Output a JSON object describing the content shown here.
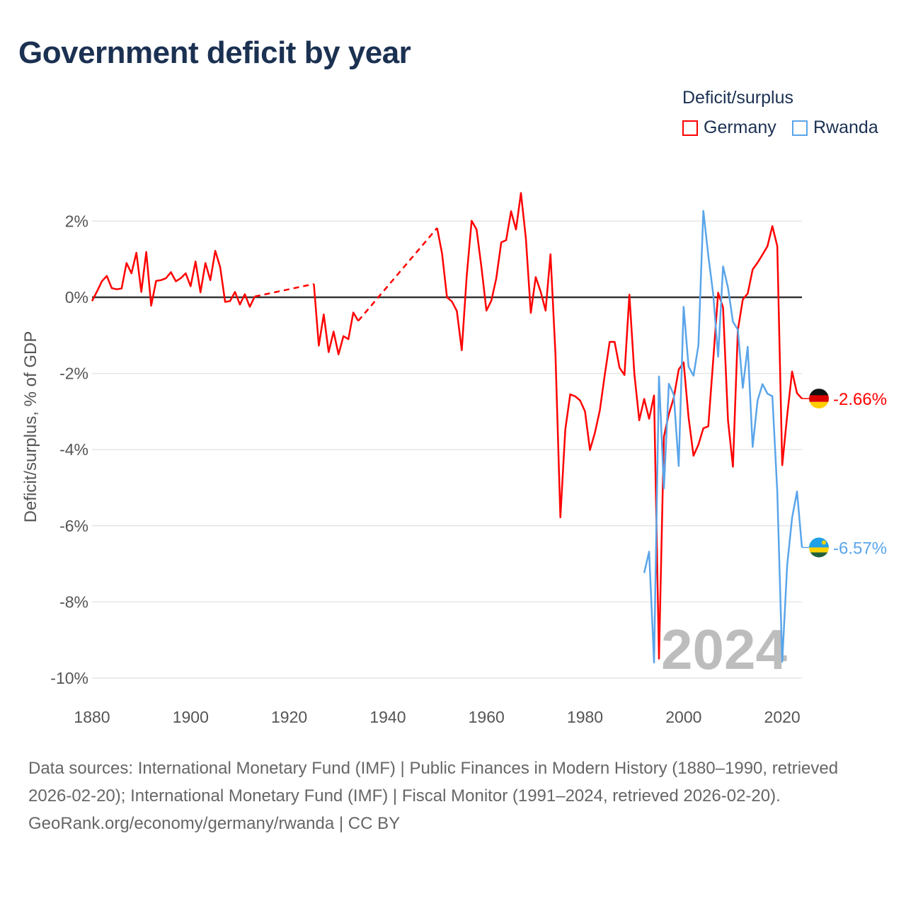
{
  "title": "Government deficit by year",
  "legend": {
    "title": "Deficit/surplus",
    "items": [
      {
        "label": "Germany",
        "color": "#ff0000"
      },
      {
        "label": "Rwanda",
        "color": "#5aa5ea"
      }
    ]
  },
  "year_watermark": "2024",
  "footer": {
    "sources": "Data sources: International Monetary Fund (IMF) | Public Finances in Modern History (1880–1990, retrieved 2026-02-20); International Monetary Fund (IMF) | Fiscal Monitor (1991–2024, retrieved 2026-02-20).",
    "credit": "GeoRank.org/economy/germany/rwanda | CC BY"
  },
  "chart_data": {
    "type": "line",
    "title": "Government deficit by year",
    "xlabel": "",
    "ylabel": "Deficit/surplus, % of GDP",
    "xlim": [
      1880,
      2024
    ],
    "ylim": [
      -10,
      2.8
    ],
    "x_ticks": [
      1880,
      1900,
      1920,
      1940,
      1960,
      1980,
      2000,
      2020
    ],
    "x_tick_labels": [
      "1880",
      "1900",
      "1920",
      "1940",
      "1960",
      "1980",
      "2000",
      "2020"
    ],
    "y_ticks": [
      2,
      0,
      -2,
      -4,
      -6,
      -8,
      -10
    ],
    "y_tick_labels": [
      "2%",
      "0%",
      "-2%",
      "-4%",
      "-6%",
      "-8%",
      "-10%"
    ],
    "grid": true,
    "legend_position": "top-right",
    "series": [
      {
        "name": "Germany",
        "color": "#ff0000",
        "end_label": "-2.66%",
        "points": [
          [
            1880,
            -0.1
          ],
          [
            1881,
            0.15
          ],
          [
            1882,
            0.42
          ],
          [
            1883,
            0.56
          ],
          [
            1884,
            0.24
          ],
          [
            1885,
            0.21
          ],
          [
            1886,
            0.23
          ],
          [
            1887,
            0.9
          ],
          [
            1888,
            0.63
          ],
          [
            1889,
            1.17
          ],
          [
            1890,
            0.14
          ],
          [
            1891,
            1.19
          ],
          [
            1892,
            -0.22
          ],
          [
            1893,
            0.43
          ],
          [
            1894,
            0.45
          ],
          [
            1895,
            0.5
          ],
          [
            1896,
            0.66
          ],
          [
            1897,
            0.42
          ],
          [
            1898,
            0.5
          ],
          [
            1899,
            0.63
          ],
          [
            1900,
            0.29
          ],
          [
            1901,
            0.94
          ],
          [
            1902,
            0.13
          ],
          [
            1903,
            0.9
          ],
          [
            1904,
            0.45
          ],
          [
            1905,
            1.22
          ],
          [
            1906,
            0.79
          ],
          [
            1907,
            -0.12
          ],
          [
            1908,
            -0.1
          ],
          [
            1909,
            0.14
          ],
          [
            1910,
            -0.19
          ],
          [
            1911,
            0.08
          ],
          [
            1912,
            -0.25
          ],
          [
            1913,
            0.02
          ],
          [
            1925,
            0.35
          ],
          [
            1926,
            -1.27
          ],
          [
            1927,
            -0.45
          ],
          [
            1928,
            -1.44
          ],
          [
            1929,
            -0.9
          ],
          [
            1930,
            -1.5
          ],
          [
            1931,
            -1.02
          ],
          [
            1932,
            -1.1
          ],
          [
            1933,
            -0.4
          ],
          [
            1934,
            -0.62
          ],
          [
            1950,
            1.82
          ],
          [
            1951,
            1.15
          ],
          [
            1952,
            0.0
          ],
          [
            1953,
            -0.11
          ],
          [
            1954,
            -0.36
          ],
          [
            1955,
            -1.39
          ],
          [
            1956,
            0.56
          ],
          [
            1957,
            2.01
          ],
          [
            1958,
            1.78
          ],
          [
            1959,
            0.78
          ],
          [
            1960,
            -0.35
          ],
          [
            1961,
            -0.09
          ],
          [
            1962,
            0.5
          ],
          [
            1963,
            1.44
          ],
          [
            1964,
            1.5
          ],
          [
            1965,
            2.26
          ],
          [
            1966,
            1.78
          ],
          [
            1967,
            2.74
          ],
          [
            1968,
            1.55
          ],
          [
            1969,
            -0.41
          ],
          [
            1970,
            0.53
          ],
          [
            1971,
            0.15
          ],
          [
            1972,
            -0.35
          ],
          [
            1973,
            1.13
          ],
          [
            1974,
            -1.49
          ],
          [
            1975,
            -5.78
          ],
          [
            1976,
            -3.47
          ],
          [
            1977,
            -2.55
          ],
          [
            1978,
            -2.6
          ],
          [
            1979,
            -2.71
          ],
          [
            1980,
            -3.0
          ],
          [
            1981,
            -4.01
          ],
          [
            1982,
            -3.56
          ],
          [
            1983,
            -2.97
          ],
          [
            1984,
            -2.04
          ],
          [
            1985,
            -1.17
          ],
          [
            1986,
            -1.17
          ],
          [
            1987,
            -1.85
          ],
          [
            1988,
            -2.04
          ],
          [
            1989,
            0.07
          ],
          [
            1990,
            -2.0
          ],
          [
            1991,
            -3.23
          ],
          [
            1992,
            -2.67
          ],
          [
            1993,
            -3.19
          ],
          [
            1994,
            -2.58
          ],
          [
            1995,
            -9.49
          ],
          [
            1996,
            -3.66
          ],
          [
            1997,
            -3.07
          ],
          [
            1998,
            -2.64
          ],
          [
            1999,
            -1.9
          ],
          [
            2000,
            -1.71
          ],
          [
            2001,
            -3.15
          ],
          [
            2002,
            -4.16
          ],
          [
            2003,
            -3.87
          ],
          [
            2004,
            -3.44
          ],
          [
            2005,
            -3.39
          ],
          [
            2006,
            -1.65
          ],
          [
            2007,
            0.12
          ],
          [
            2008,
            -0.27
          ],
          [
            2009,
            -3.23
          ],
          [
            2010,
            -4.45
          ],
          [
            2011,
            -0.86
          ],
          [
            2012,
            -0.06
          ],
          [
            2013,
            0.1
          ],
          [
            2014,
            0.73
          ],
          [
            2015,
            0.91
          ],
          [
            2016,
            1.12
          ],
          [
            2017,
            1.34
          ],
          [
            2018,
            1.87
          ],
          [
            2019,
            1.34
          ],
          [
            2020,
            -4.41
          ],
          [
            2021,
            -3.11
          ],
          [
            2022,
            -1.95
          ],
          [
            2023,
            -2.52
          ],
          [
            2024,
            -2.66
          ]
        ]
      },
      {
        "name": "Rwanda",
        "color": "#5aa5ea",
        "end_label": "-6.57%",
        "points": [
          [
            1992,
            -7.24
          ],
          [
            1993,
            -6.68
          ],
          [
            1994,
            -9.59
          ],
          [
            1995,
            -2.08
          ],
          [
            1996,
            -5.02
          ],
          [
            1997,
            -2.27
          ],
          [
            1998,
            -2.56
          ],
          [
            1999,
            -4.43
          ],
          [
            2000,
            -0.25
          ],
          [
            2001,
            -1.82
          ],
          [
            2002,
            -2.06
          ],
          [
            2003,
            -1.26
          ],
          [
            2004,
            2.27
          ],
          [
            2005,
            1.1
          ],
          [
            2006,
            0.08
          ],
          [
            2007,
            -1.56
          ],
          [
            2008,
            0.81
          ],
          [
            2009,
            0.25
          ],
          [
            2010,
            -0.64
          ],
          [
            2011,
            -0.85
          ],
          [
            2012,
            -2.38
          ],
          [
            2013,
            -1.3
          ],
          [
            2014,
            -3.93
          ],
          [
            2015,
            -2.71
          ],
          [
            2016,
            -2.28
          ],
          [
            2017,
            -2.53
          ],
          [
            2018,
            -2.6
          ],
          [
            2019,
            -5.12
          ],
          [
            2020,
            -9.57
          ],
          [
            2021,
            -7.04
          ],
          [
            2022,
            -5.79
          ],
          [
            2023,
            -5.1
          ],
          [
            2024,
            -6.57
          ]
        ]
      }
    ]
  }
}
